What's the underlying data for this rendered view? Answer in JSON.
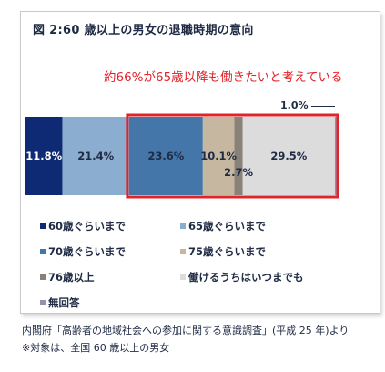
{
  "title": "図 2:60 歳以上の男女の退職時期の意向",
  "annotation": "約66%が65歳以降も働きたいと考えている",
  "source": "内閣府「高齢者の地域社会への参加に関する意識調査」(平成 25 年)より",
  "note": "※対象は、全国 60 歳以上の男女",
  "chart_data": {
    "type": "bar",
    "orientation": "horizontal-stacked-100",
    "xlim": [
      0,
      100
    ],
    "grid": false,
    "legend_position": "bottom",
    "categories": [
      ""
    ],
    "series": [
      {
        "name": "60歳ぐらいまで",
        "values": [
          11.8
        ],
        "label": "11.8%",
        "color": "#0e2a74",
        "label_color": "#ffffff"
      },
      {
        "name": "65歳ぐらいまで",
        "values": [
          21.4
        ],
        "label": "21.4%",
        "color": "#8badcf",
        "label_color": "#1f2a44"
      },
      {
        "name": "70歳ぐらいまで",
        "values": [
          23.6
        ],
        "label": "23.6%",
        "color": "#4476aa",
        "label_color": "#1f2a44"
      },
      {
        "name": "75歳ぐらいまで",
        "values": [
          10.1
        ],
        "label": "10.1%",
        "color": "#c6b8a0",
        "label_color": "#1f2a44"
      },
      {
        "name": "76歳以上",
        "values": [
          2.7
        ],
        "label": "2.7%",
        "color": "#8a8278",
        "label_color": "#1f2a44"
      },
      {
        "name": "働けるうちはいつまでも",
        "values": [
          29.5
        ],
        "label": "29.5%",
        "color": "#dcdcdc",
        "label_color": "#1f2a44"
      },
      {
        "name": "無回答",
        "values": [
          1.0
        ],
        "label": "1.0%",
        "color": "#8f93ad",
        "label_color": "#1f2a44"
      }
    ],
    "highlight_from_series": 2,
    "highlight_color": "#e1232a"
  }
}
